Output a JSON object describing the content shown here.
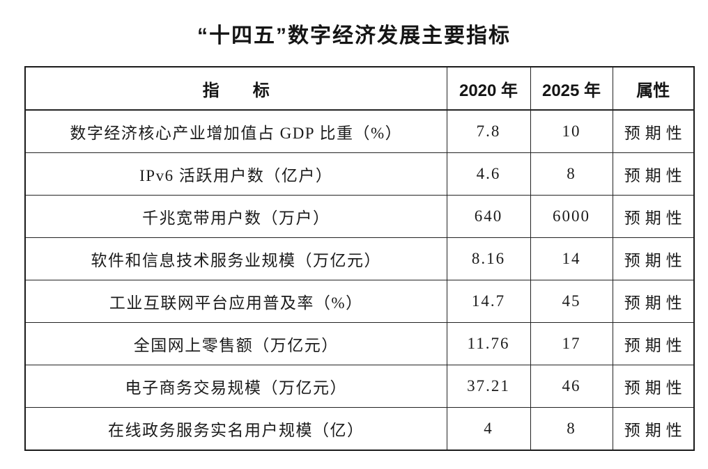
{
  "title": "“十四五”数字经济发展主要指标",
  "colors": {
    "text": "#1b1b1b",
    "border": "#222222",
    "background": "#ffffff"
  },
  "table": {
    "headers": {
      "indicator": "指　　标",
      "y2020": "2020 年",
      "y2025": "2025 年",
      "attribute": "属性"
    },
    "rows": [
      {
        "indicator": "数字经济核心产业增加值占 GDP 比重（%）",
        "y2020": "7.8",
        "y2025": "10",
        "attribute": "预期性"
      },
      {
        "indicator": "IPv6 活跃用户数（亿户）",
        "y2020": "4.6",
        "y2025": "8",
        "attribute": "预期性"
      },
      {
        "indicator": "千兆宽带用户数（万户）",
        "y2020": "640",
        "y2025": "6000",
        "attribute": "预期性"
      },
      {
        "indicator": "软件和信息技术服务业规模（万亿元）",
        "y2020": "8.16",
        "y2025": "14",
        "attribute": "预期性"
      },
      {
        "indicator": "工业互联网平台应用普及率（%）",
        "y2020": "14.7",
        "y2025": "45",
        "attribute": "预期性"
      },
      {
        "indicator": "全国网上零售额（万亿元）",
        "y2020": "11.76",
        "y2025": "17",
        "attribute": "预期性"
      },
      {
        "indicator": "电子商务交易规模（万亿元）",
        "y2020": "37.21",
        "y2025": "46",
        "attribute": "预期性"
      },
      {
        "indicator": "在线政务服务实名用户规模（亿）",
        "y2020": "4",
        "y2025": "8",
        "attribute": "预期性"
      }
    ]
  }
}
